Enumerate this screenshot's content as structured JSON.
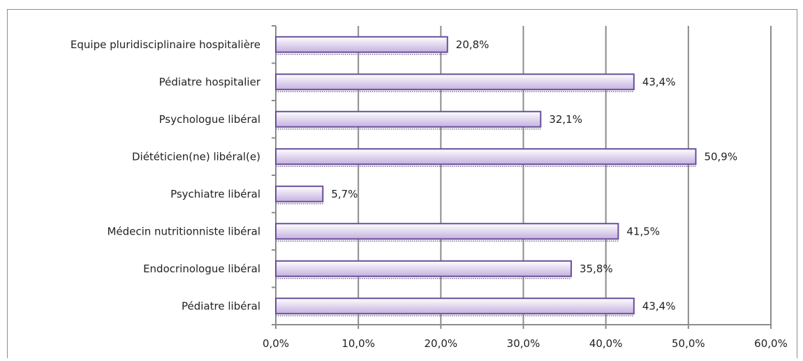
{
  "chart_data": {
    "type": "bar",
    "orientation": "horizontal",
    "categories": [
      "Equipe pluridisciplinaire hospitalière",
      "Pédiatre hospitalier",
      "Psychologue libéral",
      "Diététicien(ne) libéral(e)",
      "Psychiatre libéral",
      "Médecin nutritionniste libéral",
      "Endocrinologue libéral",
      "Pédiatre libéral"
    ],
    "values": [
      20.8,
      43.4,
      32.1,
      50.9,
      5.7,
      41.5,
      35.8,
      43.4
    ],
    "value_labels": [
      "20,8%",
      "43,4%",
      "32,1%",
      "50,9%",
      "5,7%",
      "41,5%",
      "35,8%",
      "43,4%"
    ],
    "xlim": [
      0,
      60
    ],
    "x_ticks": [
      0,
      10,
      20,
      30,
      40,
      50,
      60
    ],
    "x_tick_labels": [
      "0,0%",
      "10,0%",
      "20,0%",
      "30,0%",
      "40,0%",
      "50,0%",
      "60,0%"
    ],
    "grid": "vertical",
    "legend": "none",
    "colors": {
      "bar_fill_light": "#f1ecf8",
      "bar_fill_dark": "#c6b6de",
      "bar_stroke": "#6a4e99",
      "grid": "#8c8c8c",
      "text": "#222222"
    }
  }
}
